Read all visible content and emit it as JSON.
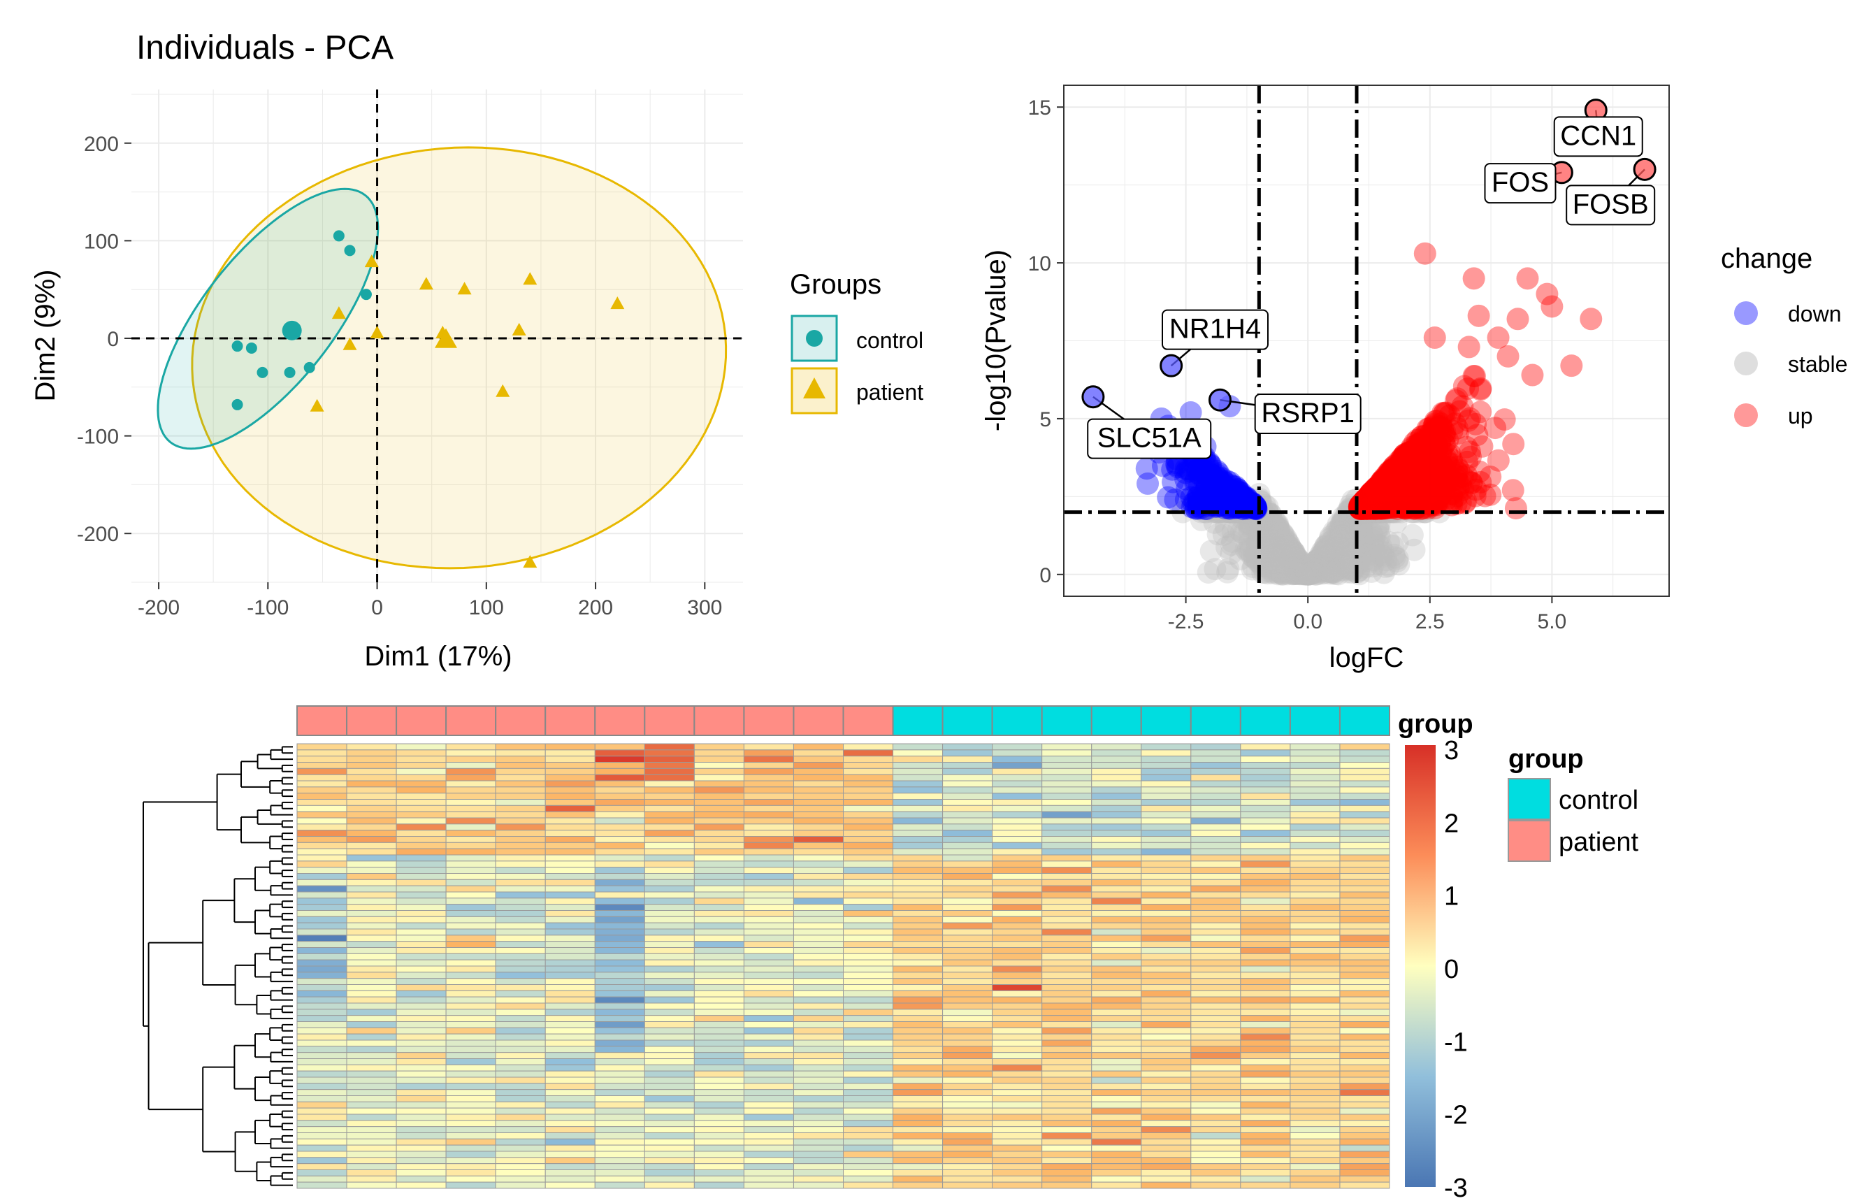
{
  "colors": {
    "control": "#1aa7a4",
    "patient": "#e7b800",
    "down": "#0000ff",
    "stable": "#bebebe",
    "up": "#ff0000",
    "heat_low": "#4a76b3",
    "heat_mid": "#ffffbf",
    "heat_high": "#d73027",
    "anno_control": "#00dde0",
    "anno_patient": "#ff8d85"
  },
  "chart_data": [
    {
      "type": "scatter",
      "title": "Individuals - PCA",
      "xlabel": "Dim1 (17%)",
      "ylabel": "Dim2 (9%)",
      "xlim": [
        -225,
        335
      ],
      "ylim": [
        -250,
        255
      ],
      "xticks": [
        -200,
        -100,
        0,
        100,
        200,
        300
      ],
      "xtick_labels": [
        "-200",
        "-100",
        "0",
        "100",
        "200",
        "300"
      ],
      "yticks": [
        -200,
        -100,
        0,
        100,
        200
      ],
      "ytick_labels": [
        "-200",
        "-100",
        "0",
        "100",
        "200"
      ],
      "grid": true,
      "reference_lines": {
        "x": 0,
        "y": 0
      },
      "legend": {
        "title": "Groups",
        "position": "right",
        "entries": [
          "control",
          "patient"
        ]
      },
      "series": [
        {
          "name": "control",
          "marker": "circle",
          "points": [
            [
              -35,
              105
            ],
            [
              -25,
              90
            ],
            [
              -10,
              45
            ],
            [
              -80,
              10
            ],
            [
              -75,
              5
            ],
            [
              -128,
              -8
            ],
            [
              -115,
              -10
            ],
            [
              -62,
              -30
            ],
            [
              -105,
              -35
            ],
            [
              -80,
              -35
            ],
            [
              -128,
              -68
            ]
          ],
          "centroid": [
            -78,
            8
          ],
          "ellipse": {
            "cx": -100,
            "cy": 20,
            "rx": 155,
            "ry": 62,
            "angle_deg": 56
          }
        },
        {
          "name": "patient",
          "marker": "triangle",
          "points": [
            [
              -5,
              78
            ],
            [
              45,
              55
            ],
            [
              80,
              50
            ],
            [
              140,
              60
            ],
            [
              220,
              35
            ],
            [
              -35,
              25
            ],
            [
              0,
              5
            ],
            [
              60,
              5
            ],
            [
              130,
              8
            ],
            [
              -25,
              -7
            ],
            [
              115,
              -55
            ],
            [
              -55,
              -70
            ],
            [
              140,
              -230
            ]
          ],
          "centroid": [
            63,
            -2
          ],
          "ellipse": {
            "cx": 75,
            "cy": -20,
            "rx": 245,
            "ry": 215,
            "angle_deg": 8
          }
        }
      ]
    },
    {
      "type": "scatter",
      "xlabel": "logFC",
      "ylabel": "-log10(Pvalue)",
      "xlim": [
        -5.0,
        7.4
      ],
      "ylim": [
        -0.7,
        15.7
      ],
      "xticks": [
        -2.5,
        0.0,
        2.5,
        5.0
      ],
      "xtick_labels": [
        "-2.5",
        "0.0",
        "2.5",
        "5.0"
      ],
      "yticks": [
        0,
        5,
        10,
        15
      ],
      "ytick_labels": [
        "0",
        "5",
        "10",
        "15"
      ],
      "grid": true,
      "threshold_lines": {
        "x": [
          -1,
          1
        ],
        "y": 2
      },
      "legend": {
        "title": "change",
        "position": "right",
        "entries": [
          "down",
          "stable",
          "up"
        ]
      },
      "labeled_genes": [
        {
          "label": "CCN1",
          "x": 5.9,
          "y": 14.9
        },
        {
          "label": "FOS",
          "x": 5.2,
          "y": 12.9
        },
        {
          "label": "FOSB",
          "x": 6.9,
          "y": 13.0
        },
        {
          "label": "NR1H4",
          "x": -2.8,
          "y": 6.7
        },
        {
          "label": "RSRP1",
          "x": -1.8,
          "y": 5.6
        },
        {
          "label": "SLC51A",
          "x": -4.4,
          "y": 5.7
        }
      ],
      "up_outliers": [
        [
          2.4,
          10.3
        ],
        [
          3.4,
          9.5
        ],
        [
          4.5,
          9.5
        ],
        [
          4.9,
          9.0
        ],
        [
          5.0,
          8.6
        ],
        [
          5.8,
          8.2
        ],
        [
          3.5,
          8.3
        ],
        [
          4.3,
          8.2
        ],
        [
          2.6,
          7.6
        ],
        [
          3.3,
          7.3
        ],
        [
          4.1,
          7.0
        ],
        [
          5.4,
          6.7
        ],
        [
          3.9,
          7.6
        ],
        [
          4.6,
          6.4
        ]
      ],
      "down_outliers": [
        [
          -3.0,
          5.0
        ],
        [
          -2.6,
          4.6
        ],
        [
          -3.1,
          4.2
        ],
        [
          -2.4,
          5.2
        ],
        [
          -1.6,
          5.4
        ],
        [
          -2.1,
          4.1
        ],
        [
          -3.3,
          3.4
        ]
      ]
    },
    {
      "type": "heatmap",
      "legend_title": "group",
      "scale_ticks": [
        3,
        2,
        1,
        0,
        -1,
        -2,
        -3
      ],
      "scale_tick_labels": [
        "3",
        "2",
        "1",
        "0",
        "-1",
        "-2",
        "-3"
      ],
      "annotation_legend_title": "group",
      "groups": [
        "control",
        "patient"
      ],
      "columns": [
        "patient",
        "patient",
        "patient",
        "patient",
        "patient",
        "patient",
        "patient",
        "patient",
        "patient",
        "patient",
        "patient",
        "patient",
        "control",
        "control",
        "control",
        "control",
        "control",
        "control",
        "control",
        "control",
        "control",
        "control"
      ],
      "n_rows": 72,
      "cluster_a_rows": 18,
      "note": "per-gene z-scores; first 18 rows up in patient, remaining rows up in control"
    }
  ]
}
